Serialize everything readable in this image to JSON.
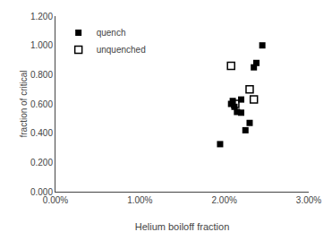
{
  "chart_data": {
    "type": "scatter",
    "xlabel": "Helium boiloff fraction",
    "ylabel": "fraction of critical",
    "xlim": [
      0.0,
      0.03
    ],
    "ylim": [
      0.0,
      1.2
    ],
    "xticks": [
      {
        "value": 0.0,
        "label": "0.00%"
      },
      {
        "value": 0.01,
        "label": "1.00%"
      },
      {
        "value": 0.02,
        "label": "2.00%"
      },
      {
        "value": 0.03,
        "label": "3.00%"
      }
    ],
    "yticks": [
      {
        "value": 0.0,
        "label": "0.000"
      },
      {
        "value": 0.2,
        "label": "0.200"
      },
      {
        "value": 0.4,
        "label": "0.400"
      },
      {
        "value": 0.6,
        "label": "0.600"
      },
      {
        "value": 0.8,
        "label": "0.800"
      },
      {
        "value": 1.0,
        "label": "1.000"
      },
      {
        "value": 1.2,
        "label": "1.200"
      }
    ],
    "grid": false,
    "legend": "upper left",
    "series": [
      {
        "name": "quench",
        "color": "black",
        "marker": "square",
        "x": [
          0.0195,
          0.0208,
          0.021,
          0.0212,
          0.0215,
          0.022,
          0.022,
          0.0225,
          0.023,
          0.0235,
          0.0238,
          0.0245
        ],
        "values": [
          0.325,
          0.6,
          0.62,
          0.58,
          0.545,
          0.63,
          0.54,
          0.42,
          0.47,
          0.85,
          0.88,
          1.0
        ]
      },
      {
        "name": "unquenched",
        "color": "black",
        "marker": "square-open",
        "x": [
          0.0208,
          0.0213,
          0.023,
          0.0235
        ],
        "values": [
          0.86,
          0.6,
          0.7,
          0.63
        ]
      }
    ]
  }
}
